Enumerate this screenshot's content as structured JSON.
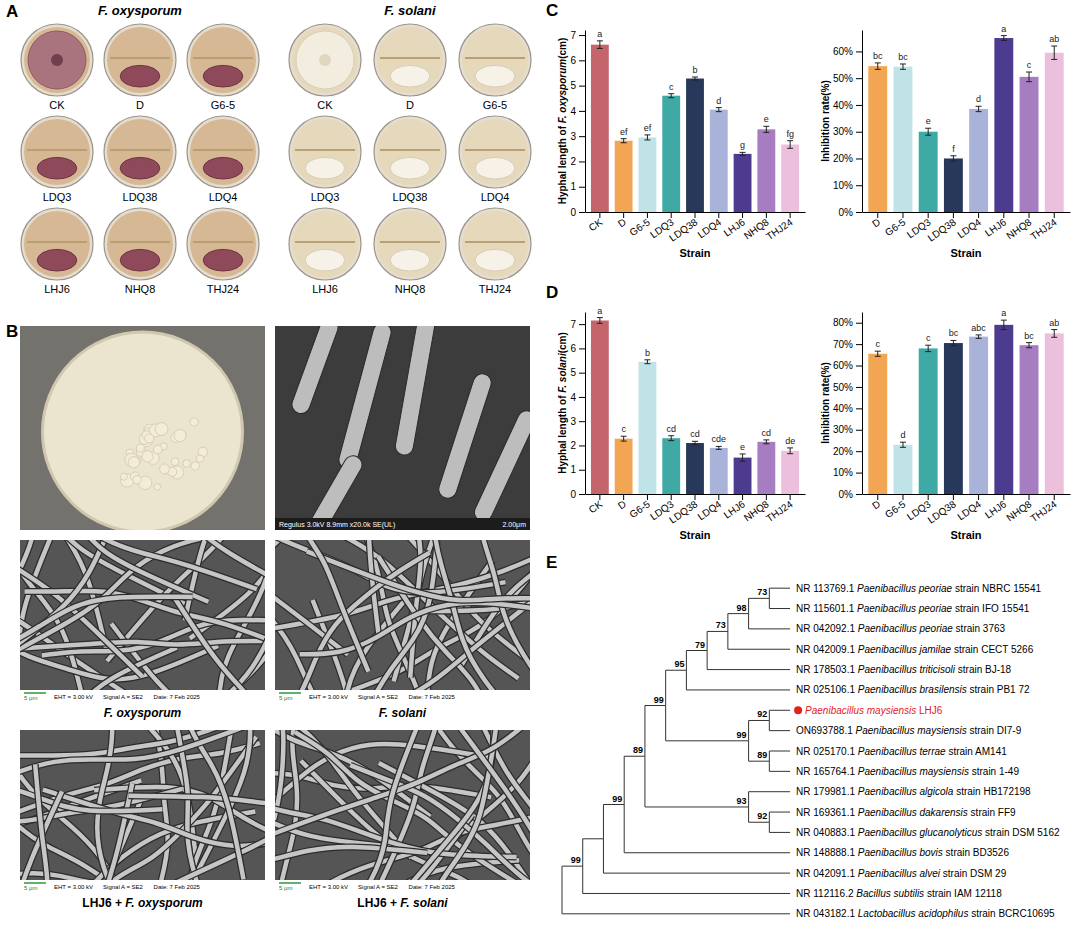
{
  "panel_labels": [
    "A",
    "B",
    "C",
    "D",
    "E"
  ],
  "plates": {
    "titles": [
      "F. oxysporum",
      "F. solani"
    ],
    "strains": [
      "CK",
      "D",
      "G6-5",
      "LDQ3",
      "LDQ38",
      "LDQ4",
      "LHJ6",
      "NHQ8",
      "THJ24"
    ]
  },
  "micrographs": {
    "rod_info": "Regulus 3.0kV 8.9mm x20.0k SE(UL)",
    "rod_scale": "2.00μm",
    "scale": "5 μm",
    "info": [
      "EHT = 3.00 kV",
      "Signal A = SE2",
      "Date: 7 Feb 2025"
    ],
    "captions": [
      [
        "F. oxysporum"
      ],
      [
        "F. solani"
      ],
      [
        "LHJ6 + ",
        "F. oxysporum"
      ],
      [
        "LHJ6 + ",
        "F. solani"
      ]
    ]
  },
  "chart_data": [
    {
      "type": "bar",
      "categories": [
        "CK",
        "D",
        "G6-5",
        "LDQ3",
        "LDQ38",
        "LDQ4",
        "LHJ6",
        "NHQ8",
        "THJ24"
      ],
      "values": [
        6.62,
        2.82,
        2.95,
        4.6,
        5.28,
        4.05,
        2.3,
        3.27,
        2.67
      ],
      "errors": [
        0.15,
        0.08,
        0.1,
        0.08,
        0.06,
        0.08,
        0.06,
        0.12,
        0.15
      ],
      "letters": [
        "a",
        "ef",
        "ef",
        "c",
        "b",
        "d",
        "g",
        "e",
        "fg"
      ],
      "colors": [
        "#c3656b",
        "#f2a552",
        "#bfe3e6",
        "#3fa9a6",
        "#27385a",
        "#a9b3d9",
        "#4d3b8f",
        "#a57dc0",
        "#ecc0dc"
      ],
      "xlabel": "Strain",
      "ylabel": [
        "Hyphal length of ",
        "F. oxysporum",
        "(cm)"
      ],
      "ylim": [
        0,
        7.2
      ],
      "yticks": [
        0,
        1,
        2,
        3,
        4,
        5,
        6,
        7
      ]
    },
    {
      "type": "bar",
      "categories": [
        "D",
        "G6-5",
        "LDQ3",
        "LDQ38",
        "LDQ4",
        "LHJ6",
        "NHQ8",
        "THJ24"
      ],
      "values": [
        54.5,
        54.3,
        30,
        20,
        38.5,
        65,
        50.5,
        59.5
      ],
      "errors": [
        1.2,
        1.0,
        1.3,
        1.0,
        1.0,
        0.9,
        1.8,
        2.5
      ],
      "letters": [
        "bc",
        "bc",
        "e",
        "f",
        "d",
        "a",
        "c",
        "ab"
      ],
      "colors": [
        "#f2a552",
        "#bfe3e6",
        "#3fa9a6",
        "#27385a",
        "#a9b3d9",
        "#4d3b8f",
        "#a57dc0",
        "#ecc0dc"
      ],
      "xlabel": "Strain",
      "ylabel": [
        "Inhibition rate(%)"
      ],
      "ylim": [
        0,
        68
      ],
      "yticks": [
        {
          "value": 0,
          "label": "0%"
        },
        {
          "value": 10,
          "label": "10%"
        },
        {
          "value": 20,
          "label": "20%"
        },
        {
          "value": 30,
          "label": "30%"
        },
        {
          "value": 40,
          "label": "40%"
        },
        {
          "value": 50,
          "label": "50%"
        },
        {
          "value": 60,
          "label": "60%"
        }
      ]
    },
    {
      "type": "bar",
      "categories": [
        "CK",
        "D",
        "G6-5",
        "LDQ3",
        "LDQ38",
        "LDQ4",
        "LHJ6",
        "NHQ8",
        "THJ24"
      ],
      "values": [
        7.15,
        2.28,
        5.45,
        2.3,
        2.1,
        1.9,
        1.5,
        2.15,
        1.78
      ],
      "errors": [
        0.12,
        0.1,
        0.08,
        0.1,
        0.07,
        0.06,
        0.15,
        0.08,
        0.12
      ],
      "letters": [
        "a",
        "c",
        "b",
        "cd",
        "cd",
        "cde",
        "e",
        "cd",
        "de"
      ],
      "colors": [
        "#c3656b",
        "#f2a552",
        "#bfe3e6",
        "#3fa9a6",
        "#27385a",
        "#a9b3d9",
        "#4d3b8f",
        "#a57dc0",
        "#ecc0dc"
      ],
      "xlabel": "Strain",
      "ylabel": [
        "Hyphal length of ",
        "F. solani",
        "(cm)"
      ],
      "ylim": [
        0,
        7.5
      ],
      "yticks": [
        0,
        1,
        2,
        3,
        4,
        5,
        6,
        7
      ]
    },
    {
      "type": "bar",
      "categories": [
        "D",
        "G6-5",
        "LDQ3",
        "LDQ38",
        "LDQ4",
        "LHJ6",
        "NHQ8",
        "THJ24"
      ],
      "values": [
        65.5,
        23,
        68,
        70.5,
        73.5,
        79,
        69.5,
        75
      ],
      "errors": [
        1.2,
        1.2,
        1.5,
        1.2,
        0.8,
        2.2,
        1.2,
        1.8
      ],
      "letters": [
        "c",
        "d",
        "c",
        "bc",
        "abc",
        "a",
        "bc",
        "ab"
      ],
      "colors": [
        "#f2a552",
        "#bfe3e6",
        "#3fa9a6",
        "#27385a",
        "#a9b3d9",
        "#4d3b8f",
        "#a57dc0",
        "#ecc0dc"
      ],
      "xlabel": "Strain",
      "ylabel": [
        "Inhibition rate(%)"
      ],
      "ylim": [
        0,
        85
      ],
      "yticks": [
        {
          "value": 0,
          "label": "0%"
        },
        {
          "value": 10,
          "label": "10%"
        },
        {
          "value": 20,
          "label": "20%"
        },
        {
          "value": 30,
          "label": "30%"
        },
        {
          "value": 40,
          "label": "40%"
        },
        {
          "value": 50,
          "label": "50%"
        },
        {
          "value": 60,
          "label": "60%"
        },
        {
          "value": 70,
          "label": "70%"
        },
        {
          "value": 80,
          "label": "80%"
        }
      ]
    }
  ],
  "tree": {
    "children": [
      {
        "support": 99,
        "children": [
          {
            "children": [
              {
                "support": 99,
                "children": [
                  {
                    "support": 89,
                    "children": [
                      {
                        "support": 99,
                        "children": [
                          {
                            "support": 95,
                            "children": [
                              {
                                "support": 79,
                                "children": [
                                  {
                                    "support": 73,
                                    "children": [
                                      {
                                        "support": 98,
                                        "children": [
                                          {
                                            "support": 73,
                                            "children": [
                                              {
                                                "accession": "NR 113769.1",
                                                "species": "Paenibacillus peoriae",
                                                "strain": "strain NBRC 15541"
                                              },
                                              {
                                                "accession": "NR 115601.1",
                                                "species": "Paenibacillus peoriae",
                                                "strain": "strain IFO 15541"
                                              }
                                            ]
                                          },
                                          {
                                            "accession": "NR 042092.1",
                                            "species": "Paenibacillus peoriae",
                                            "strain": "strain 3763"
                                          }
                                        ]
                                      },
                                      {
                                        "accession": "NR 042009.1",
                                        "species": "Paenibacillus jamilae",
                                        "strain": "strain CECT 5266"
                                      }
                                    ]
                                  },
                                  {
                                    "accession": "NR 178503.1",
                                    "species": "Paenibacillus triticisoli",
                                    "strain": "strain BJ-18"
                                  }
                                ]
                              },
                              {
                                "accession": "NR 025106.1",
                                "species": "Paenibacillus brasilensis",
                                "strain": "strain PB1 72"
                              }
                            ]
                          },
                          {
                            "support": 99,
                            "children": [
                              {
                                "support": 92,
                                "children": [
                                  {
                                    "species": "Paenibacillus maysiensis",
                                    "strain": "LHJ6",
                                    "color": "#e3211c"
                                  },
                                  {
                                    "accession": "ON693788.1",
                                    "species": "Paenibacillus maysiensis",
                                    "strain": "strain DI7-9"
                                  }
                                ]
                              },
                              {
                                "support": 89,
                                "children": [
                                  {
                                    "accession": "NR 025170.1",
                                    "species": "Paenibacillus terrae",
                                    "strain": "strain AM141"
                                  },
                                  {
                                    "accession": "NR 165764.1",
                                    "species": "Paenibacillus maysiensis",
                                    "strain": "strain 1-49"
                                  }
                                ]
                              }
                            ]
                          }
                        ]
                      },
                      {
                        "support": 93,
                        "children": [
                          {
                            "accession": "NR 179981.1",
                            "species": "Paenibacillus algicola",
                            "strain": "strain HB172198"
                          },
                          {
                            "support": 92,
                            "children": [
                              {
                                "accession": "NR 169361.1",
                                "species": "Paenibacillus dakarensis",
                                "strain": "strain FF9"
                              },
                              {
                                "accession": "NR 040883.1",
                                "species": "Paenibacillus glucanolyticus",
                                "strain": "strain DSM 5162"
                              }
                            ]
                          }
                        ]
                      }
                    ]
                  },
                  {
                    "accession": "NR 148888.1",
                    "species": "Paenibacillus bovis",
                    "strain": "strain BD3526"
                  }
                ]
              },
              {
                "accession": "NR 042091.1",
                "species": "Paenibacillus alvei",
                "strain": "strain DSM 29"
              }
            ]
          },
          {
            "accession": "NR 112116.2",
            "species": "Bacillus subtilis",
            "strain": "strain IAM 12118"
          }
        ]
      },
      {
        "accession": "NR 043182.1",
        "species": "Lactobacillus acidophilus",
        "strain": "strain BCRC10695"
      }
    ]
  }
}
